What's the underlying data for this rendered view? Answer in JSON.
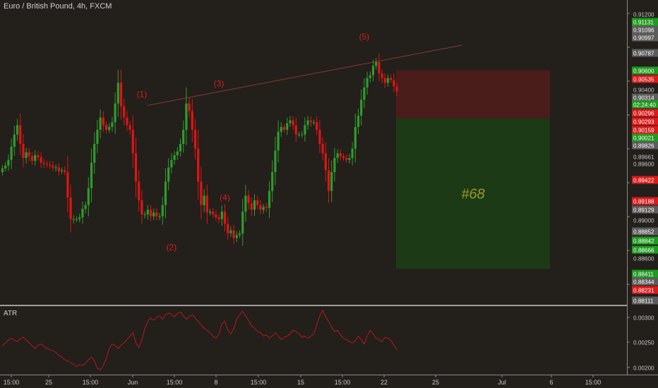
{
  "header": {
    "title": "Euro / British Pound, 4h, FXCM"
  },
  "indicator": {
    "label": "ATR"
  },
  "colors": {
    "background": "#231f1b",
    "up": "#2e9c2e",
    "down": "#e01414",
    "position_stop": "#4a1c1a",
    "position_target": "#1d3a17",
    "wave_label": "#d41e1e",
    "atr_line": "#b51a1a",
    "trend_line": "#8a3a33",
    "axis_text": "#c8c8c8"
  },
  "chart_data": [
    {
      "type": "candlestick",
      "symbol": "Euro / British Pound",
      "timeframe": "4h",
      "source": "FXCM",
      "y_ticks": [
        "0.91200",
        "0.90800",
        "0.90400",
        "0.90000",
        "0.89600",
        "0.89200",
        "0.88800",
        "0.88400",
        "0.88000"
      ],
      "ylim": [
        0.8804,
        0.9128
      ],
      "x_ticks": [
        "15:00",
        "25",
        "15:00",
        "Jun",
        "15:00",
        "8",
        "15:00",
        "15",
        "15:00",
        "22",
        "25",
        "Jul",
        "6",
        "15:00"
      ],
      "price_labels": [
        {
          "value": "0.91200",
          "style": "plain"
        },
        {
          "value": "0.91131",
          "style": "up"
        },
        {
          "value": "0.91096",
          "style": "gray"
        },
        {
          "value": "0.90997",
          "style": "gray"
        },
        {
          "value": "0.90787",
          "style": "gray"
        },
        {
          "value": "0.90600",
          "style": "up"
        },
        {
          "value": "0.90535",
          "style": "down"
        },
        {
          "value": "0.90400",
          "style": "plain"
        },
        {
          "value": "0.90314",
          "style": "gray"
        },
        {
          "value": "02:24:40",
          "style": "up"
        },
        {
          "value": "0.90296",
          "style": "down"
        },
        {
          "value": "0.90293",
          "style": "down"
        },
        {
          "value": "0.90159",
          "style": "down"
        },
        {
          "value": "0.90021",
          "style": "up"
        },
        {
          "value": "0.89826",
          "style": "gray"
        },
        {
          "value": "0.89661",
          "style": "plain"
        },
        {
          "value": "0.89600",
          "style": "plain"
        },
        {
          "value": "0.89422",
          "style": "down"
        },
        {
          "value": "0.89188",
          "style": "down"
        },
        {
          "value": "0.89129",
          "style": "gray"
        },
        {
          "value": "0.89000",
          "style": "plain"
        },
        {
          "value": "0.88852",
          "style": "gray"
        },
        {
          "value": "0.88842",
          "style": "up"
        },
        {
          "value": "0.88666",
          "style": "up"
        },
        {
          "value": "0.88600",
          "style": "plain"
        },
        {
          "value": "0.88411",
          "style": "up"
        },
        {
          "value": "0.88344",
          "style": "gray"
        },
        {
          "value": "0.88231",
          "style": "down"
        },
        {
          "value": "0.88111",
          "style": "gray"
        }
      ],
      "closes": [
        0.8949,
        0.8952,
        0.8958,
        0.8972,
        0.8985,
        0.8995,
        0.8975,
        0.896,
        0.8966,
        0.8962,
        0.8957,
        0.8963,
        0.8961,
        0.8955,
        0.8954,
        0.8953,
        0.8952,
        0.895,
        0.895,
        0.8946,
        0.8947,
        0.8945,
        0.8918,
        0.8895,
        0.8895,
        0.8895,
        0.8897,
        0.8906,
        0.891,
        0.8928,
        0.8955,
        0.8975,
        0.899,
        0.9003,
        0.8995,
        0.899,
        0.8993,
        0.8998,
        0.9018,
        0.904,
        0.9015,
        0.9003,
        0.8995,
        0.899,
        0.8965,
        0.8935,
        0.8915,
        0.89,
        0.89,
        0.8905,
        0.8898,
        0.8902,
        0.8898,
        0.8898,
        0.891,
        0.8935,
        0.895,
        0.8958,
        0.8963,
        0.8967,
        0.8975,
        0.899,
        0.9018,
        0.901,
        0.899,
        0.897,
        0.8935,
        0.891,
        0.892,
        0.8902,
        0.8903,
        0.89,
        0.8897,
        0.8895,
        0.8903,
        0.889,
        0.888,
        0.8883,
        0.8875,
        0.8878,
        0.888,
        0.8903,
        0.892,
        0.8912,
        0.8905,
        0.8915,
        0.891,
        0.8905,
        0.8908,
        0.8907,
        0.8925,
        0.8945,
        0.8968,
        0.8988,
        0.8993,
        0.899,
        0.8997,
        0.9,
        0.8995,
        0.8985,
        0.8985,
        0.8985,
        0.8995,
        0.9,
        0.8998,
        0.8998,
        0.899,
        0.8975,
        0.8965,
        0.8947,
        0.8925,
        0.8945,
        0.896,
        0.8965,
        0.8962,
        0.896,
        0.8958,
        0.896,
        0.897,
        0.8993,
        0.9005,
        0.9022,
        0.9035,
        0.9045,
        0.9048,
        0.9058,
        0.9062,
        0.905,
        0.9045,
        0.904,
        0.9045,
        0.9043,
        0.9036,
        0.9031
      ],
      "trade_id": "#68",
      "position": {
        "entry": 0.90021,
        "stop": 0.90535,
        "target": 0.88422
      },
      "wave_labels": [
        {
          "text": "(1)",
          "bar": 47,
          "price": 0.9025
        },
        {
          "text": "(2)",
          "bar": 57,
          "price": 0.8862
        },
        {
          "text": "(3)",
          "bar": 73,
          "price": 0.9036
        },
        {
          "text": "(4)",
          "bar": 75,
          "price": 0.8915
        },
        {
          "text": "(5)",
          "bar": 122,
          "price": 0.9086
        }
      ],
      "trend_line": [
        {
          "bar": 49,
          "price": 0.9016
        },
        {
          "bar": 155,
          "price": 0.908
        }
      ]
    },
    {
      "type": "line",
      "name": "ATR",
      "y_ticks": [
        "0.00300",
        "0.00250",
        "0.00200"
      ],
      "ylim": [
        0.00195,
        0.00315
      ],
      "values": [
        0.00245,
        0.0025,
        0.00255,
        0.00258,
        0.00255,
        0.00252,
        0.00257,
        0.0026,
        0.00255,
        0.0025,
        0.00245,
        0.0024,
        0.00246,
        0.00248,
        0.00244,
        0.0024,
        0.00238,
        0.00236,
        0.00233,
        0.00228,
        0.00225,
        0.0022,
        0.00218,
        0.00215,
        0.00212,
        0.00208,
        0.00212,
        0.0021,
        0.00214,
        0.0022,
        0.00225,
        0.00218,
        0.00205,
        0.00202,
        0.0021,
        0.00222,
        0.0024,
        0.00248,
        0.00245,
        0.0024,
        0.00246,
        0.0025,
        0.00256,
        0.00262,
        0.00268,
        0.0025,
        0.00242,
        0.00255,
        0.00275,
        0.00288,
        0.00294,
        0.0029,
        0.00295,
        0.00298,
        0.00292,
        0.003,
        0.00303,
        0.003,
        0.00296,
        0.00302,
        0.00305,
        0.00298,
        0.00292,
        0.00296,
        0.003,
        0.00294,
        0.00288,
        0.00282,
        0.00276,
        0.00272,
        0.00268,
        0.00262,
        0.00258,
        0.00265,
        0.00284,
        0.00288,
        0.00272,
        0.00266,
        0.00275,
        0.00292,
        0.003,
        0.00306,
        0.00298,
        0.0029,
        0.0028,
        0.00276,
        0.0027,
        0.00268,
        0.00262,
        0.00264,
        0.00258,
        0.00262,
        0.00268,
        0.00262,
        0.00256,
        0.0026,
        0.00262,
        0.00266,
        0.00272,
        0.0027,
        0.00266,
        0.0026,
        0.00262,
        0.00258,
        0.00262,
        0.00266,
        0.00282,
        0.00298,
        0.00308,
        0.00296,
        0.00288,
        0.00278,
        0.0027,
        0.00272,
        0.00264,
        0.00258,
        0.00256,
        0.00252,
        0.0025,
        0.00254,
        0.00262,
        0.00256,
        0.00248,
        0.00262,
        0.00272,
        0.00266,
        0.00258,
        0.00256,
        0.00252,
        0.0026,
        0.00258,
        0.00254,
        0.00246,
        0.00238
      ]
    }
  ]
}
